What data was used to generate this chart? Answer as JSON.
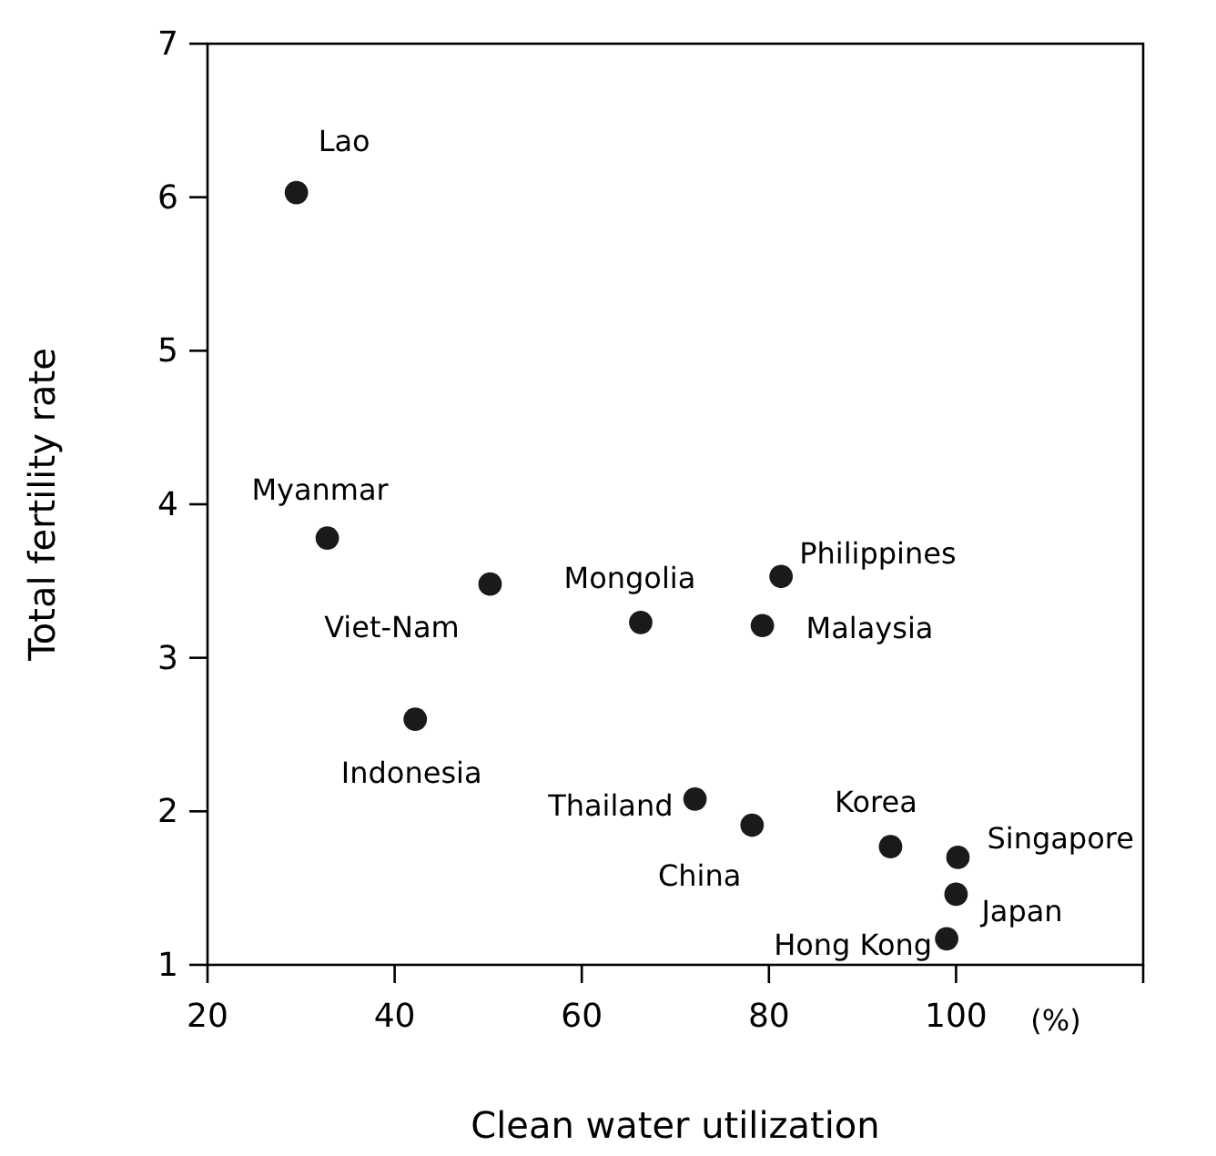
{
  "chart_data": {
    "type": "scatter",
    "xlabel": "Clean water utilization",
    "ylabel": "Total fertility rate",
    "x": [
      29.5,
      32.8,
      50.2,
      66.3,
      81.3,
      79.3,
      42.2,
      72.1,
      78.2,
      93,
      100.2,
      100,
      99
    ],
    "series": [
      {
        "color": "#1a1a1a",
        "values": [
          6.03,
          3.78,
          3.48,
          3.23,
          3.53,
          3.21,
          2.6,
          2.08,
          1.91,
          1.77,
          1.7,
          1.46,
          1.17
        ]
      }
    ],
    "xlim": [
      20,
      120
    ],
    "xticks": [
      20,
      40,
      60,
      80,
      100,
      {
        "value": 120,
        "label": null
      }
    ],
    "ylim": [
      1,
      7
    ],
    "yticks": [
      1,
      2,
      3,
      4,
      5,
      6,
      7
    ],
    "grid": false,
    "marker": "circle",
    "annotations": [
      {
        "text": "Lao",
        "x": 29.5,
        "y": 6.03
      },
      {
        "text": "Myanmar",
        "x": 32.8,
        "y": 3.78
      },
      {
        "text": "Viet-Nam",
        "x": 50.2,
        "y": 3.48
      },
      {
        "text": "Mongolia",
        "x": 66.3,
        "y": 3.23
      },
      {
        "text": "Philippines",
        "x": 81.3,
        "y": 3.53
      },
      {
        "text": "Malaysia",
        "x": 79.3,
        "y": 3.21
      },
      {
        "text": "Indonesia",
        "x": 42.2,
        "y": 2.6
      },
      {
        "text": "Thailand",
        "x": 72.1,
        "y": 2.08
      },
      {
        "text": "China",
        "x": 78.2,
        "y": 1.91
      },
      {
        "text": "Korea",
        "x": 93,
        "y": 1.77
      },
      {
        "text": "Singapore",
        "x": 100.2,
        "y": 1.7
      },
      {
        "text": "Japan",
        "x": 100,
        "y": 1.46
      },
      {
        "text": "Hong Kong",
        "x": 99,
        "y": 1.17
      },
      "(%)"
    ]
  }
}
